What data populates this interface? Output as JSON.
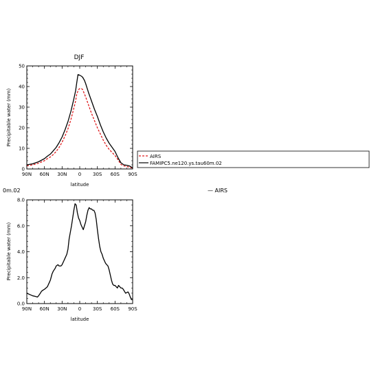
{
  "chart_data": [
    {
      "type": "line",
      "title": "DJF",
      "xlabel": "latitude",
      "ylabel": "Precipitable water (mm)",
      "xlim": [
        90,
        -90
      ],
      "ylim": [
        0,
        50
      ],
      "xticks": [
        90,
        60,
        30,
        0,
        -30,
        -60,
        -90
      ],
      "xticklabels": [
        "90N",
        "60N",
        "30N",
        "0",
        "30S",
        "60S",
        "90S"
      ],
      "yticks": [
        0,
        10,
        20,
        30,
        40,
        50
      ],
      "yticklabels": [
        "0",
        "10",
        "20",
        "30",
        "40",
        "50"
      ],
      "grid": false,
      "legend_placement": "right",
      "series": [
        {
          "name": "AIRS",
          "color": "#e0191b",
          "dash": "dashed",
          "x": [
            90,
            80,
            70,
            60,
            55,
            50,
            45,
            40,
            35,
            30,
            25,
            20,
            15,
            10,
            7,
            5,
            2,
            0,
            -3,
            -5,
            -10,
            -15,
            -20,
            -25,
            -30,
            -35,
            -40,
            -45,
            -50,
            -55,
            -60,
            -65,
            -70,
            -75,
            -80,
            -85,
            -90
          ],
          "y": [
            1.5,
            2,
            2.8,
            4,
            5,
            5.8,
            7,
            8.5,
            10.5,
            13,
            16,
            19.5,
            24,
            29.5,
            33,
            36.5,
            38.5,
            39,
            39,
            38.5,
            35,
            31,
            27,
            23.5,
            20,
            17,
            14,
            11.5,
            9.5,
            8,
            6.5,
            4.5,
            2.2,
            1.5,
            1.2,
            0.8,
            0.4
          ]
        },
        {
          "name": "FAMIPC5.ne120.ys.tau60m.02",
          "color": "#000000",
          "dash": "solid",
          "x": [
            90,
            80,
            70,
            60,
            55,
            50,
            45,
            40,
            35,
            30,
            25,
            20,
            15,
            10,
            7,
            5,
            3,
            0,
            -3,
            -5,
            -8,
            -10,
            -15,
            -20,
            -25,
            -30,
            -35,
            -40,
            -45,
            -50,
            -55,
            -60,
            -65,
            -70,
            -75,
            -80,
            -85,
            -90
          ],
          "y": [
            2,
            2.5,
            3.5,
            5,
            6.2,
            7.2,
            8.8,
            10.5,
            12.8,
            15.5,
            19,
            23,
            28,
            34,
            38,
            42,
            45.8,
            45.5,
            45,
            44.5,
            43,
            41.5,
            37,
            33,
            29,
            25.5,
            21.5,
            18,
            15,
            12.5,
            10.5,
            8.5,
            5.5,
            3,
            2,
            1.8,
            1.4,
            0.5
          ]
        }
      ]
    },
    {
      "type": "line",
      "title": "",
      "xlabel": "latitude",
      "ylabel": "Precipitable water (mm)",
      "xlim": [
        90,
        -90
      ],
      "ylim": [
        0,
        8
      ],
      "xticks": [
        90,
        60,
        30,
        0,
        -30,
        -60,
        -90
      ],
      "xticklabels": [
        "90N",
        "60N",
        "30N",
        "0",
        "30S",
        "60S",
        "90S"
      ],
      "yticks": [
        0,
        2,
        4,
        6,
        8
      ],
      "yticklabels": [
        "0.0",
        "2.0",
        "4.0",
        "6.0",
        "8.0"
      ],
      "grid": false,
      "series": [
        {
          "color": "#000000",
          "dash": "solid",
          "x": [
            90,
            85,
            80,
            75,
            72,
            70,
            67,
            65,
            62,
            60,
            55,
            52,
            50,
            47,
            45,
            42,
            40,
            37,
            35,
            32,
            30,
            27,
            25,
            22,
            20,
            18,
            16,
            14,
            12,
            10,
            8,
            6,
            4,
            2,
            0,
            -2,
            -4,
            -6,
            -8,
            -10,
            -12,
            -14,
            -16,
            -18,
            -20,
            -22,
            -24,
            -26,
            -28,
            -30,
            -32,
            -34,
            -36,
            -38,
            -40,
            -42,
            -44,
            -46,
            -48,
            -50,
            -52,
            -54,
            -56,
            -58,
            -60,
            -62,
            -64,
            -66,
            -68,
            -70,
            -72,
            -74,
            -76,
            -78,
            -80,
            -82,
            -84,
            -86,
            -88,
            -90
          ],
          "y": [
            0.8,
            0.7,
            0.6,
            0.55,
            0.5,
            0.6,
            0.8,
            0.95,
            1.05,
            1.1,
            1.3,
            1.6,
            1.8,
            2.3,
            2.5,
            2.7,
            2.9,
            3.0,
            2.9,
            2.9,
            3.0,
            3.3,
            3.5,
            3.8,
            4.2,
            5.0,
            5.5,
            6.0,
            6.6,
            7.2,
            7.7,
            7.6,
            7.0,
            6.6,
            6.4,
            6.1,
            5.9,
            5.7,
            6.0,
            6.3,
            6.8,
            7.2,
            7.4,
            7.3,
            7.3,
            7.2,
            7.2,
            7.0,
            6.5,
            5.7,
            5.0,
            4.4,
            4.0,
            3.8,
            3.5,
            3.3,
            3.1,
            3.0,
            2.9,
            2.6,
            2.2,
            1.8,
            1.5,
            1.4,
            1.4,
            1.3,
            1.2,
            1.4,
            1.3,
            1.2,
            1.2,
            1.1,
            0.95,
            0.8,
            0.85,
            0.9,
            0.75,
            0.5,
            0.3,
            0.3
          ]
        }
      ]
    }
  ],
  "legend": {
    "entries": [
      "AIRS",
      "FAMIPC5.ne120.ys.tau60m.02"
    ]
  },
  "fragments": {
    "clipped_label": "0m.02",
    "stray_legend": "—  AIRS"
  }
}
